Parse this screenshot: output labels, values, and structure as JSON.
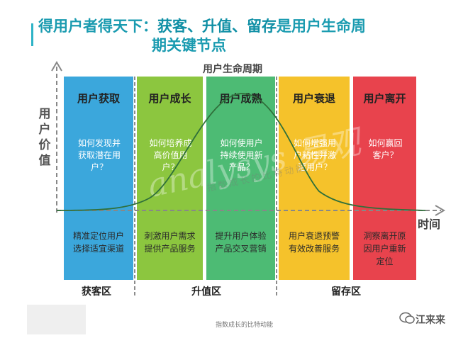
{
  "title": {
    "line1_plain": "得用户者得天下：",
    "line1_bold": "获客、升值、留存",
    "line1_rest": "是用户生命周",
    "line2": "期关键节点"
  },
  "diagram": {
    "lifecycle_label": "用户生命周期",
    "y_axis_label": "用户价值",
    "x_axis_label": "时间",
    "stages": [
      {
        "name": "用户获取",
        "question": "如何发现并获取潜在用户？",
        "action": "精准定位用户选择适宜渠道",
        "color": "#3ba7dc"
      },
      {
        "name": "用户成长",
        "question": "如何培养成高价值用户？",
        "action": "刺激用户需求提供产品服务",
        "color": "#8cc63f"
      },
      {
        "name": "用户成熟",
        "question": "如何使用户持续使用新产品？",
        "action": "提升用户体验产品交叉营销",
        "color": "#4dbb74"
      },
      {
        "name": "用户衰退",
        "question": "如何增强用户粘性并激活用户？",
        "action": "用户衰退预警有效改善服务",
        "color": "#f5c22b"
      },
      {
        "name": "用户离开",
        "question": "如何赢回客户？",
        "action": "洞察离开原因用户重新定位",
        "color": "#e8434d"
      }
    ],
    "zones": [
      "获客区",
      "升值区",
      "留存区"
    ],
    "watermark": "analysys 易观",
    "watermark_sub": "指数成长的比特动能"
  },
  "footer": {
    "text": "指数成长的比特动能",
    "brand": "江来来"
  }
}
